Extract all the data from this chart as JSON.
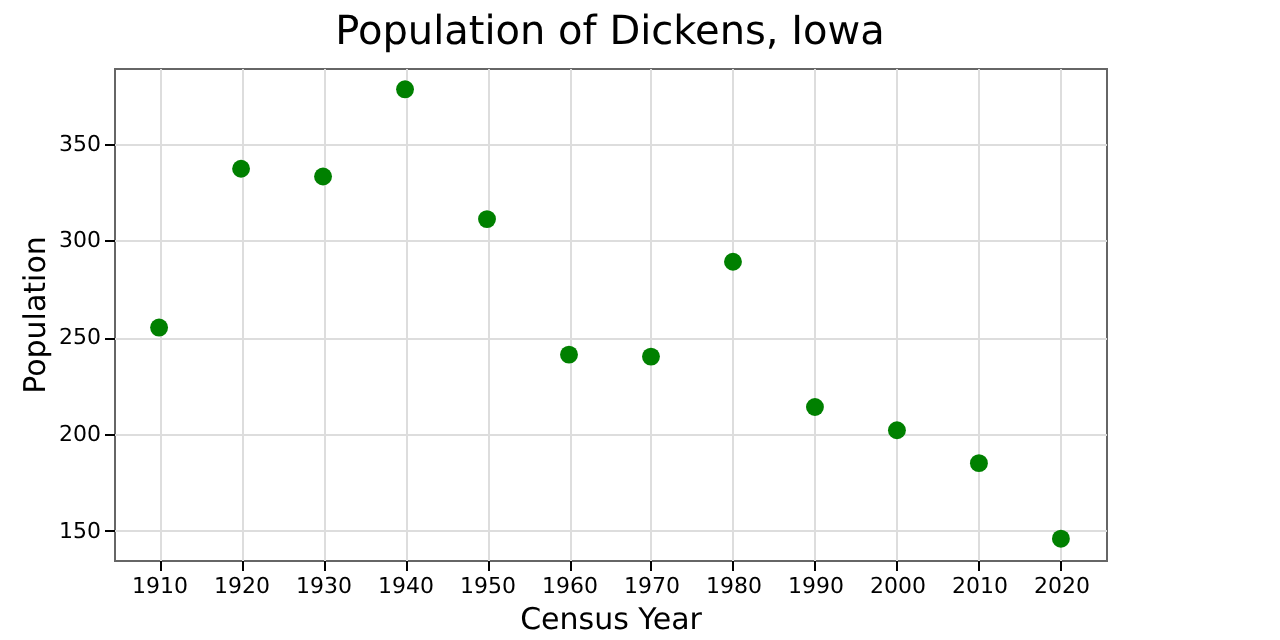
{
  "chart_data": {
    "type": "scatter",
    "title": "Population of Dickens, Iowa",
    "xlabel": "Census Year",
    "ylabel": "Population",
    "x": [
      1910,
      1920,
      1930,
      1940,
      1950,
      1960,
      1970,
      1980,
      1990,
      2000,
      2010,
      2020
    ],
    "series": [
      {
        "color": "#008000",
        "values": [
          255,
          337,
          333,
          378,
          311,
          241,
          240,
          289,
          214,
          202,
          185,
          146
        ]
      }
    ],
    "xlim": [
      1904.5,
      2025.5
    ],
    "xticks": [
      1910,
      1920,
      1930,
      1940,
      1950,
      1960,
      1970,
      1980,
      1990,
      2000,
      2010,
      2020
    ],
    "ylim": [
      135,
      389
    ],
    "yticks": [
      150,
      200,
      250,
      300,
      350
    ],
    "grid": true,
    "marker": "circle"
  }
}
